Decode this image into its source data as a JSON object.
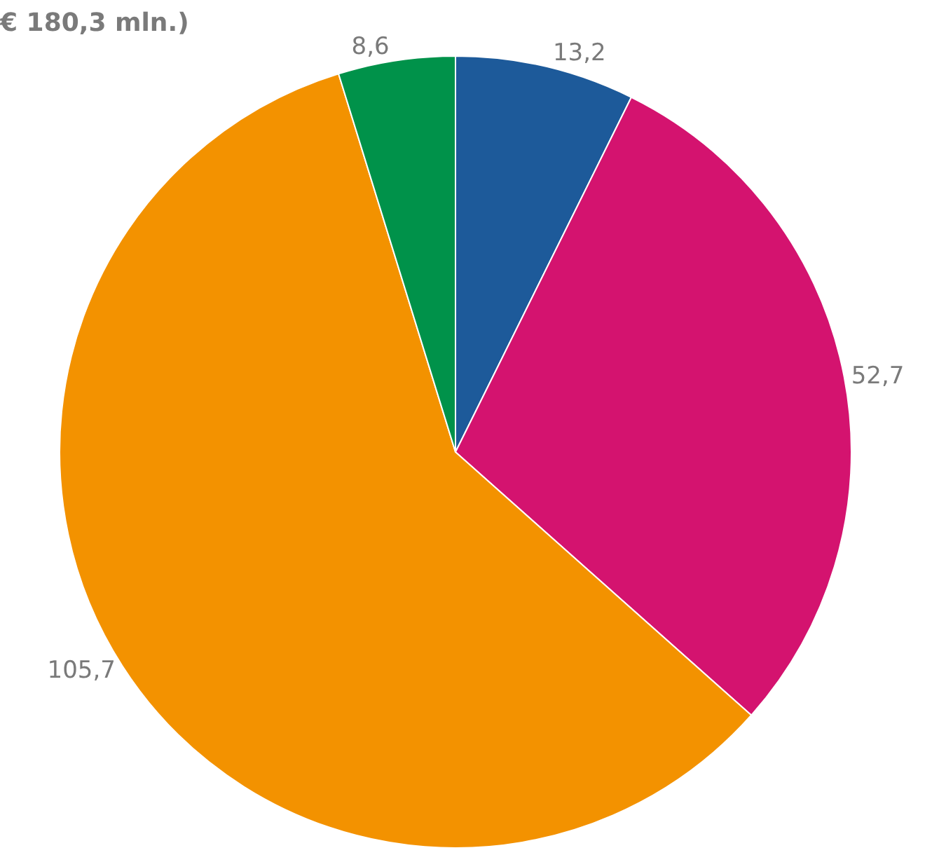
{
  "chart_data": {
    "type": "pie",
    "title": "€ 180,3 mln.)",
    "categories": [
      null,
      null,
      null,
      null
    ],
    "values": [
      13.2,
      52.7,
      105.7,
      8.6
    ],
    "value_labels": [
      "13,2",
      "52,7",
      "105,7",
      "8,6"
    ],
    "colors": [
      "#1d5a9a",
      "#d4136f",
      "#f39200",
      "#00924a"
    ],
    "legend": false
  }
}
